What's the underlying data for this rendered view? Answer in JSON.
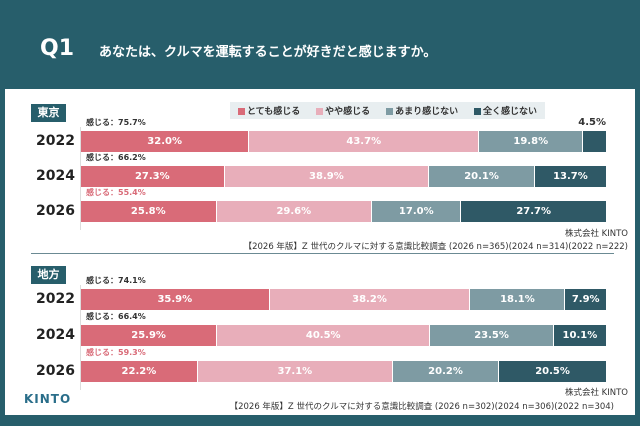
{
  "header": {
    "q": "Q1",
    "question": "あなたは、クルマを運転することが好きだと感じますか。"
  },
  "logo": "KINTO",
  "chart_data": [
    {
      "type": "bar",
      "stacked": true,
      "orientation": "horizontal",
      "section": "東京",
      "categories": [
        "2022",
        "2024",
        "2026"
      ],
      "summary": [
        "感じる：75.7%",
        "感じる：66.2%",
        "感じる：55.4%"
      ],
      "series": [
        {
          "name": "とても感じる",
          "color": "#d96b78",
          "values": [
            32.0,
            27.3,
            25.8
          ]
        },
        {
          "name": "やや感じる",
          "color": "#e8aeba",
          "values": [
            43.7,
            38.9,
            29.6
          ]
        },
        {
          "name": "あまり感じない",
          "color": "#7e9ba3",
          "values": [
            19.8,
            20.1,
            17.0
          ]
        },
        {
          "name": "全く感じない",
          "color": "#2f5966",
          "values": [
            4.5,
            13.7,
            27.7
          ]
        }
      ],
      "source": "株式会社 KINTO",
      "note": "【2026 年版】Z 世代のクルマに対する意識比較調査 (2026 n=365)(2024 n=314)(2022 n=222)"
    },
    {
      "type": "bar",
      "stacked": true,
      "orientation": "horizontal",
      "section": "地方",
      "categories": [
        "2022",
        "2024",
        "2026"
      ],
      "summary": [
        "感じる：74.1%",
        "感じる：66.4%",
        "感じる：59.3%"
      ],
      "series": [
        {
          "name": "とても感じる",
          "color": "#d96b78",
          "values": [
            35.9,
            25.9,
            22.2
          ]
        },
        {
          "name": "やや感じる",
          "color": "#e8aeba",
          "values": [
            38.2,
            40.5,
            37.1
          ]
        },
        {
          "name": "あまり感じない",
          "color": "#7e9ba3",
          "values": [
            18.1,
            23.5,
            20.2
          ]
        },
        {
          "name": "全く感じない",
          "color": "#2f5966",
          "values": [
            7.9,
            10.1,
            20.5
          ]
        }
      ],
      "source": "株式会社 KINTO",
      "note": "【2026 年版】Z 世代のクルマに対する意識比較調査 (2026 n=302)(2024 n=306)(2022 n=304)"
    }
  ],
  "highlight_color": "#d96b78"
}
